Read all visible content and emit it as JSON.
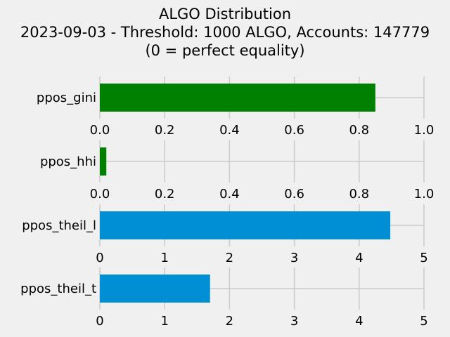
{
  "title_lines": [
    "ALGO Distribution",
    "2023-09-03 - Threshold: 1000 ALGO, Accounts: 147779",
    "(0 = perfect equality)"
  ],
  "chart_data": [
    {
      "type": "bar",
      "orientation": "horizontal",
      "categories": [
        "ppos_gini"
      ],
      "values": [
        0.85
      ],
      "xlim": [
        0,
        1.0
      ],
      "ticks": [
        "0.0",
        "0.2",
        "0.4",
        "0.6",
        "0.8",
        "1.0"
      ],
      "color": "#008000",
      "grid": true
    },
    {
      "type": "bar",
      "orientation": "horizontal",
      "categories": [
        "ppos_hhi"
      ],
      "values": [
        0.02
      ],
      "xlim": [
        0,
        1.0
      ],
      "ticks": [
        "0.0",
        "0.2",
        "0.4",
        "0.6",
        "0.8",
        "1.0"
      ],
      "color": "#008000",
      "grid": true
    },
    {
      "type": "bar",
      "orientation": "horizontal",
      "categories": [
        "ppos_theil_l"
      ],
      "values": [
        4.48
      ],
      "xlim": [
        0,
        5
      ],
      "ticks": [
        "0",
        "1",
        "2",
        "3",
        "4",
        "5"
      ],
      "color": "#008fd5",
      "grid": true
    },
    {
      "type": "bar",
      "orientation": "horizontal",
      "categories": [
        "ppos_theil_t"
      ],
      "values": [
        1.7
      ],
      "xlim": [
        0,
        5
      ],
      "ticks": [
        "0",
        "1",
        "2",
        "3",
        "4",
        "5"
      ],
      "color": "#008fd5",
      "grid": true
    }
  ]
}
